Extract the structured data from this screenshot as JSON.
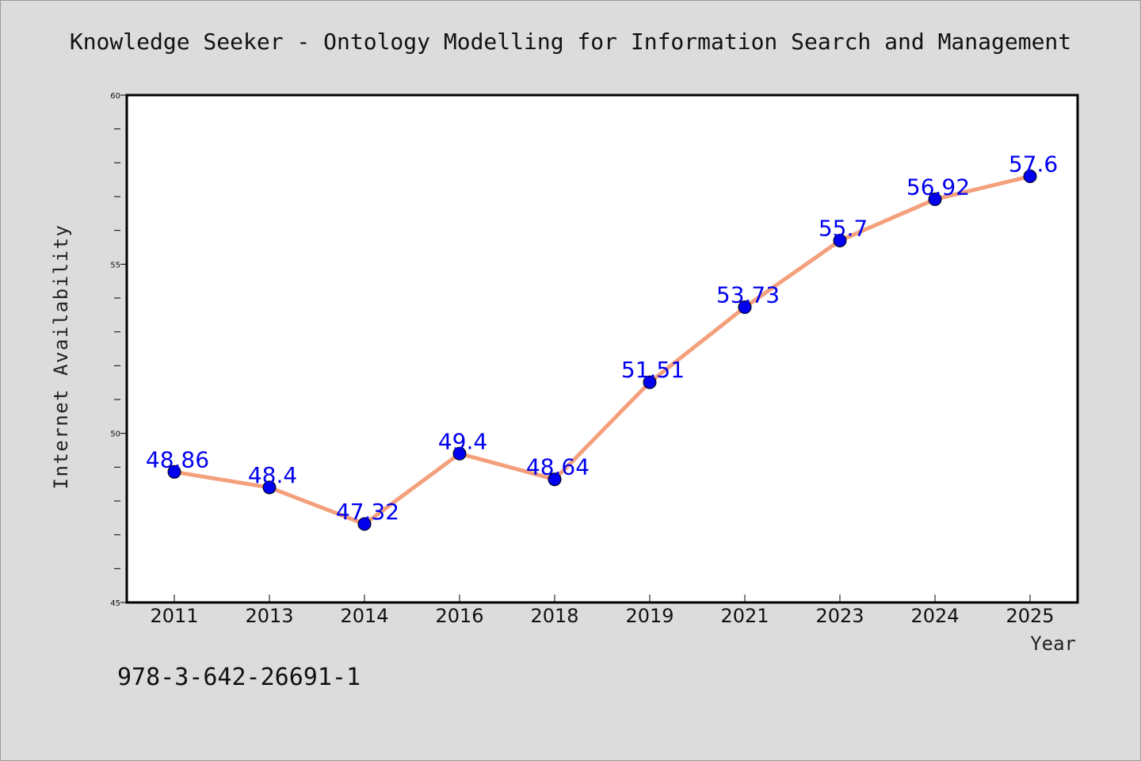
{
  "chart_data": {
    "type": "line",
    "title": "Knowledge Seeker - Ontology Modelling for Information Search and Management",
    "xlabel": "Year",
    "ylabel": "Internet Availability",
    "categories": [
      "2011",
      "2013",
      "2014",
      "2016",
      "2018",
      "2019",
      "2021",
      "2023",
      "2024",
      "2025"
    ],
    "series": [
      {
        "values": [
          48.86,
          48.4,
          47.32,
          49.4,
          48.64,
          51.51,
          53.73,
          55.7,
          56.92,
          57.6
        ],
        "line_color": "#f4a07c",
        "marker_color": "#0000ee"
      }
    ],
    "data_labels": [
      "48.86",
      "48.4",
      "47.32",
      "49.4",
      "48.64",
      "51.51",
      "53.73",
      "55.7",
      "56.92",
      "57.6"
    ],
    "ylim": [
      45,
      60
    ],
    "y_tick_labels": [
      "45",
      "50",
      "55",
      "60"
    ],
    "y_minor_step": 1,
    "grid": false,
    "legend": "none",
    "label_color": "#0000ee",
    "annotation": "978-3-642-26691-1"
  }
}
